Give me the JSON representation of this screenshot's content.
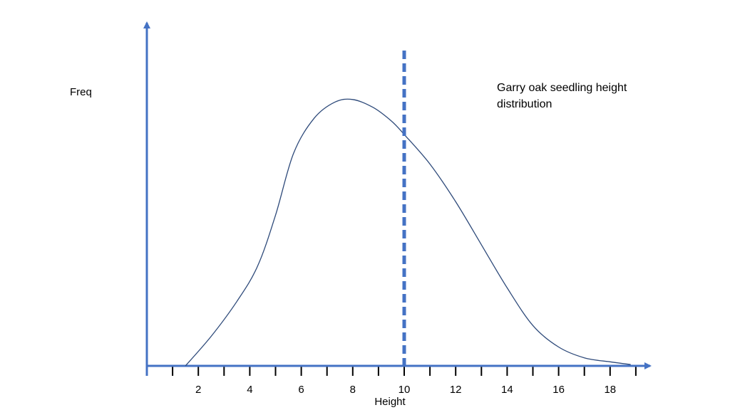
{
  "chart_data": {
    "type": "line",
    "title": "Garry oak seedling height distribution",
    "title_lines": [
      "Garry oak seedling height",
      "distribution"
    ],
    "xlabel": "Height",
    "ylabel": "Freq",
    "xlim": [
      0,
      19
    ],
    "ylim": [
      0,
      1.0
    ],
    "x_tick_labels": [
      "2",
      "4",
      "6",
      "8",
      "10",
      "12",
      "14",
      "16",
      "18"
    ],
    "x_tick_values": [
      2,
      4,
      6,
      8,
      10,
      12,
      14,
      16,
      18
    ],
    "minor_tick_step": 1,
    "grid": false,
    "legend": "none",
    "marker_line": {
      "x": 10,
      "style": "dashed"
    },
    "series": [
      {
        "x": [
          1.5,
          2.5,
          3.5,
          4.3,
          5.0,
          5.7,
          6.5,
          7.3,
          8.0,
          8.8,
          9.5,
          10.0,
          11.0,
          12.0,
          13.0,
          14.0,
          15.0,
          16.0,
          17.0,
          18.0,
          18.8
        ],
        "y": [
          0.0,
          0.11,
          0.24,
          0.37,
          0.56,
          0.79,
          0.92,
          0.98,
          0.99,
          0.96,
          0.91,
          0.86,
          0.75,
          0.61,
          0.45,
          0.29,
          0.15,
          0.07,
          0.03,
          0.015,
          0.005
        ]
      }
    ],
    "colors": {
      "axis": "#4472c4",
      "marker_line": "#4472c4",
      "curve": "#2e4a7a",
      "ticks": "#000000"
    }
  }
}
